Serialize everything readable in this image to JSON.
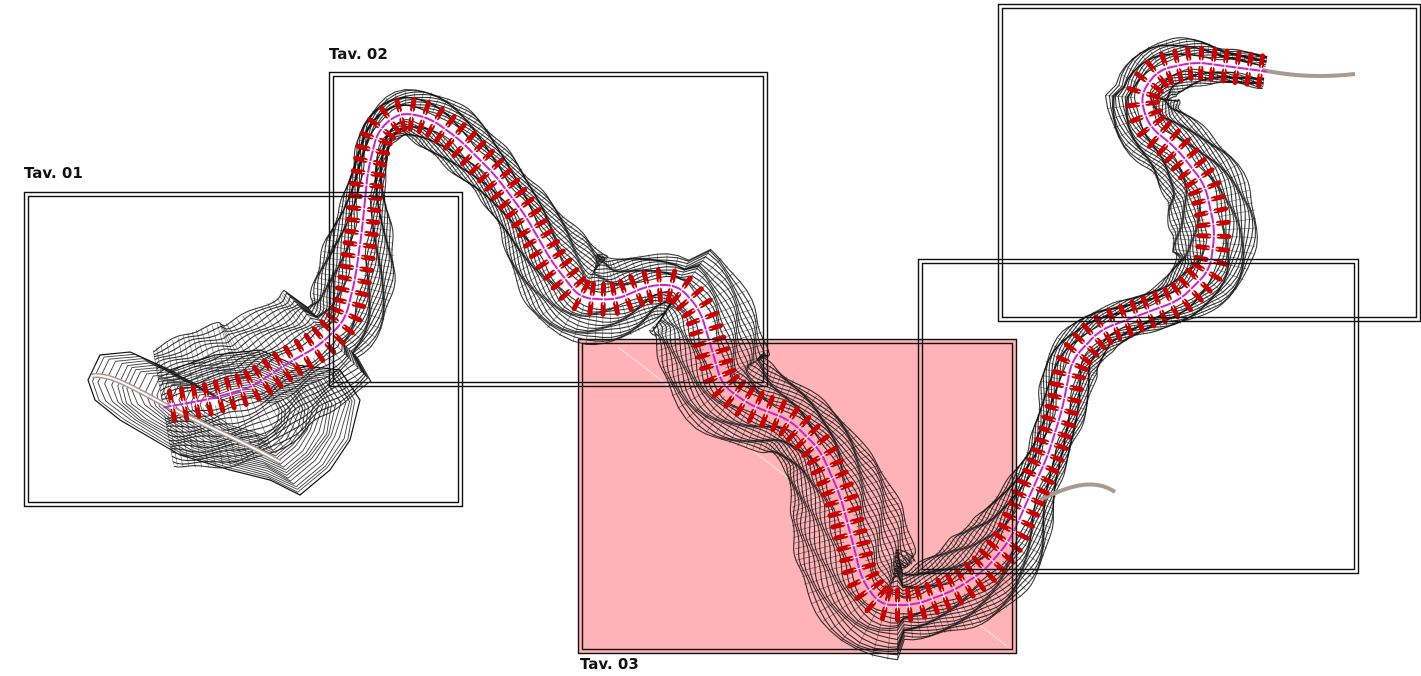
{
  "sheets": [
    {
      "label": "Tav. 01",
      "highlighted": false
    },
    {
      "label": "Tav. 02",
      "highlighted": false
    },
    {
      "label": "Tav. 03",
      "highlighted": true
    },
    {
      "label": "",
      "highlighted": false
    },
    {
      "label": "",
      "highlighted": false
    }
  ],
  "colors": {
    "background": "#ffffff",
    "contour": "#141414",
    "section_mark": "#cc0000",
    "axis_line": "#d020d0",
    "road": "#a89a90",
    "highlight_fill": "#ff9ea2",
    "frame": "#111111"
  }
}
